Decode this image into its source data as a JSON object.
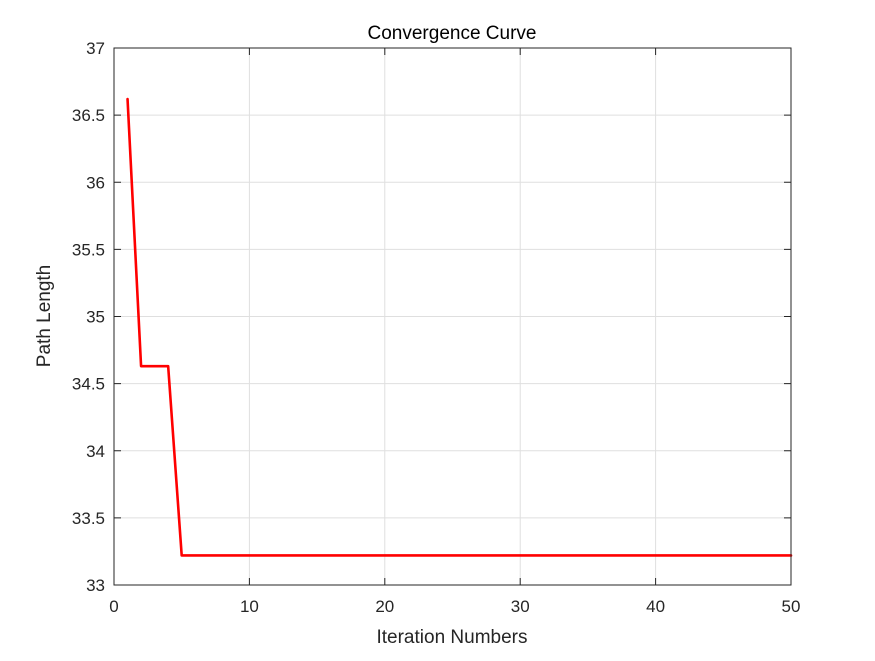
{
  "chart_data": {
    "type": "line",
    "title": "Convergence Curve",
    "xlabel": "Iteration Numbers",
    "ylabel": "Path Length",
    "xlim": [
      0,
      50
    ],
    "ylim": [
      33,
      37
    ],
    "xticks": [
      0,
      10,
      20,
      30,
      40,
      50
    ],
    "yticks": [
      33,
      33.5,
      34,
      34.5,
      35,
      35.5,
      36,
      36.5,
      37
    ],
    "xtick_labels": [
      "0",
      "10",
      "20",
      "30",
      "40",
      "50"
    ],
    "ytick_labels": [
      "33",
      "33.5",
      "34",
      "34.5",
      "35",
      "35.5",
      "36",
      "36.5",
      "37"
    ],
    "grid": true,
    "series": [
      {
        "color": "#ff0000",
        "x": [
          1,
          2,
          3,
          4,
          5,
          6,
          7,
          8,
          9,
          10,
          11,
          12,
          13,
          14,
          15,
          16,
          17,
          18,
          19,
          20,
          21,
          22,
          23,
          24,
          25,
          26,
          27,
          28,
          29,
          30,
          31,
          32,
          33,
          34,
          35,
          36,
          37,
          38,
          39,
          40,
          41,
          42,
          43,
          44,
          45,
          46,
          47,
          48,
          49,
          50
        ],
        "y": [
          36.62,
          34.63,
          34.63,
          34.63,
          33.22,
          33.22,
          33.22,
          33.22,
          33.22,
          33.22,
          33.22,
          33.22,
          33.22,
          33.22,
          33.22,
          33.22,
          33.22,
          33.22,
          33.22,
          33.22,
          33.22,
          33.22,
          33.22,
          33.22,
          33.22,
          33.22,
          33.22,
          33.22,
          33.22,
          33.22,
          33.22,
          33.22,
          33.22,
          33.22,
          33.22,
          33.22,
          33.22,
          33.22,
          33.22,
          33.22,
          33.22,
          33.22,
          33.22,
          33.22,
          33.22,
          33.22,
          33.22,
          33.22,
          33.22,
          33.22
        ]
      }
    ]
  }
}
